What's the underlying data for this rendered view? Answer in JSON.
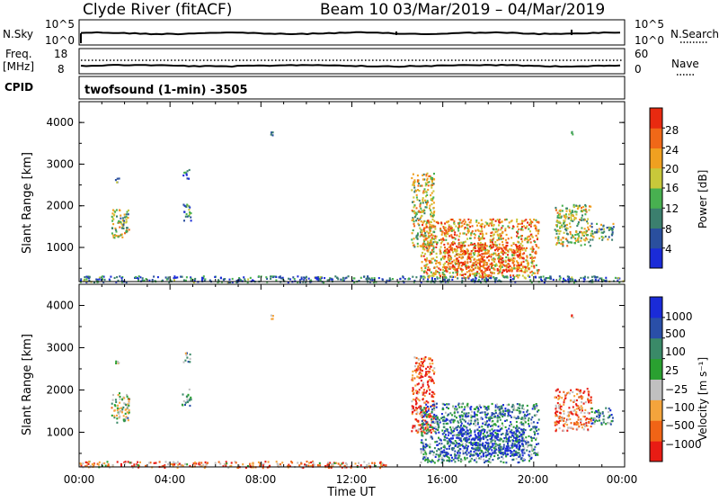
{
  "header": {
    "station": "Clyde River (fitACF)",
    "beam": "Beam 10",
    "dates": "03/Mar/2019 – 04/Mar/2019"
  },
  "strip_top": {
    "left_label": "N.Sky",
    "left_ticks": [
      "10^5",
      "10^0"
    ],
    "right_ticks": [
      "10^5",
      "10^0"
    ],
    "right_label": "N.Search"
  },
  "strip_freq": {
    "left_label_1": "Freq.",
    "left_label_2": "[MHz]",
    "left_ticks": [
      "18",
      "8"
    ],
    "right_ticks": [
      "60",
      "0"
    ],
    "right_label": "Nave"
  },
  "cpid": {
    "label": "CPID",
    "program": "twofsound (1-min) -3505"
  },
  "x_axis": {
    "label": "Time UT",
    "ticks": [
      "00:00",
      "04:00",
      "08:00",
      "12:00",
      "16:00",
      "20:00",
      "00:00"
    ]
  },
  "chart_data": [
    {
      "type": "heatmap",
      "title": "",
      "xlabel": "Time UT",
      "ylabel": "Slant Range [km]",
      "xlim": [
        0,
        24
      ],
      "ylim": [
        180,
        4500
      ],
      "y_ticks": [
        "1000",
        "2000",
        "3000",
        "4000"
      ],
      "colorbar": {
        "label": "Power [dB]",
        "ticks": [
          "4",
          "8",
          "12",
          "16",
          "20",
          "24",
          "28"
        ],
        "range": [
          0,
          30
        ]
      },
      "regions": [
        {
          "t": [
            1.4,
            2.2
          ],
          "r": [
            1250,
            1950
          ],
          "level": 0.5
        },
        {
          "t": [
            1.55,
            1.75
          ],
          "r": [
            2550,
            2750
          ],
          "level": 0.25
        },
        {
          "t": [
            4.5,
            4.9
          ],
          "r": [
            1650,
            2050
          ],
          "level": 0.3
        },
        {
          "t": [
            4.55,
            4.85
          ],
          "r": [
            2650,
            2900
          ],
          "level": 0.2
        },
        {
          "t": [
            8.4,
            8.5
          ],
          "r": [
            3700,
            3800
          ],
          "level": 0.15
        },
        {
          "t": [
            0,
            24
          ],
          "r": [
            180,
            330
          ],
          "level": 0.25
        },
        {
          "t": [
            14.6,
            15.6
          ],
          "r": [
            1000,
            2800
          ],
          "level": 0.55
        },
        {
          "t": [
            15.0,
            20.2
          ],
          "r": [
            300,
            1700
          ],
          "level": 0.7
        },
        {
          "t": [
            16.0,
            19.5
          ],
          "r": [
            450,
            1100
          ],
          "level": 0.85
        },
        {
          "t": [
            20.9,
            22.5
          ],
          "r": [
            1050,
            2050
          ],
          "level": 0.55
        },
        {
          "t": [
            22.5,
            23.5
          ],
          "r": [
            1200,
            1600
          ],
          "level": 0.4
        },
        {
          "t": [
            21.6,
            21.7
          ],
          "r": [
            3700,
            3800
          ],
          "level": 0.15
        }
      ]
    },
    {
      "type": "heatmap",
      "title": "",
      "xlabel": "Time UT",
      "ylabel": "Slant Range [km]",
      "xlim": [
        0,
        24
      ],
      "ylim": [
        180,
        4500
      ],
      "y_ticks": [
        "1000",
        "2000",
        "3000",
        "4000"
      ],
      "colorbar": {
        "label": "Velocity [m s⁻¹]",
        "ticks": [
          "1000",
          "500",
          "100",
          "25",
          "−25",
          "−100",
          "−500",
          "−1000"
        ],
        "range": [
          -1000,
          1000
        ]
      },
      "regions": [
        {
          "t": [
            1.4,
            2.2
          ],
          "r": [
            1250,
            1950
          ],
          "level": 0.5
        },
        {
          "t": [
            1.55,
            1.75
          ],
          "r": [
            2550,
            2750
          ],
          "level": 0.45
        },
        {
          "t": [
            4.5,
            4.9
          ],
          "r": [
            1650,
            2050
          ],
          "level": 0.6
        },
        {
          "t": [
            4.55,
            4.85
          ],
          "r": [
            2650,
            2900
          ],
          "level": 0.6
        },
        {
          "t": [
            8.4,
            8.5
          ],
          "r": [
            3700,
            3800
          ],
          "level": 0.3
        },
        {
          "t": [
            0,
            13.5
          ],
          "r": [
            180,
            330
          ],
          "level": 0.25
        },
        {
          "t": [
            14.6,
            15.6
          ],
          "r": [
            1000,
            2800
          ],
          "level": 0.15
        },
        {
          "t": [
            15.0,
            20.2
          ],
          "r": [
            300,
            1700
          ],
          "level": 0.7
        },
        {
          "t": [
            16.0,
            19.5
          ],
          "r": [
            450,
            1100
          ],
          "level": 0.9
        },
        {
          "t": [
            20.9,
            22.5
          ],
          "r": [
            1050,
            2050
          ],
          "level": 0.2
        },
        {
          "t": [
            22.5,
            23.5
          ],
          "r": [
            1200,
            1600
          ],
          "level": 0.65
        },
        {
          "t": [
            21.6,
            21.7
          ],
          "r": [
            3700,
            3800
          ],
          "level": 0.2
        }
      ]
    }
  ],
  "colors": {
    "power": [
      "#1a2bd8",
      "#2a4f9e",
      "#3b7f6e",
      "#48b050",
      "#c8c83a",
      "#f0a020",
      "#f06818",
      "#e82a10"
    ],
    "velocity": [
      "#e81c14",
      "#f06416",
      "#f4a43c",
      "#c0c0c0",
      "#2aa030",
      "#3a8a68",
      "#2a4fa8",
      "#1a2bd8"
    ]
  }
}
